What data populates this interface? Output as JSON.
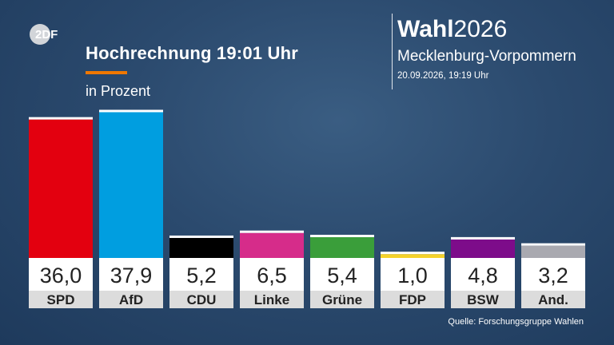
{
  "header": {
    "title": "Hochrechnung 19:01 Uhr",
    "unit": "in Prozent"
  },
  "brand": {
    "logo_text": "2DF",
    "wahl": "Wahl",
    "year": "2026",
    "region": "Mecklenburg-Vorpommern",
    "timestamp": "20.09.2026, 19:19 Uhr"
  },
  "footer": {
    "source": "Quelle: Forschungsgruppe Wahlen"
  },
  "colors": {
    "accent_line": "#f07800",
    "value_box": "#ffffff",
    "label_box": "#dcdcdc"
  },
  "chart_data": {
    "type": "bar",
    "categories": [
      "SPD",
      "AfD",
      "CDU",
      "Linke",
      "Grüne",
      "FDP",
      "BSW",
      "And."
    ],
    "values": [
      36.0,
      37.9,
      5.2,
      6.5,
      5.4,
      1.0,
      4.8,
      3.2
    ],
    "value_labels": [
      "36,0",
      "37,9",
      "5,2",
      "6,5",
      "5,4",
      "1,0",
      "4,8",
      "3,2"
    ],
    "colors": [
      "#e3000f",
      "#009ee0",
      "#000000",
      "#d62c8a",
      "#3a9e3a",
      "#f5d22a",
      "#7d0c8a",
      "#a9a9b0"
    ],
    "title": "Hochrechnung 19:01 Uhr",
    "ylabel": "in Prozent",
    "ylim": [
      0,
      38
    ]
  }
}
